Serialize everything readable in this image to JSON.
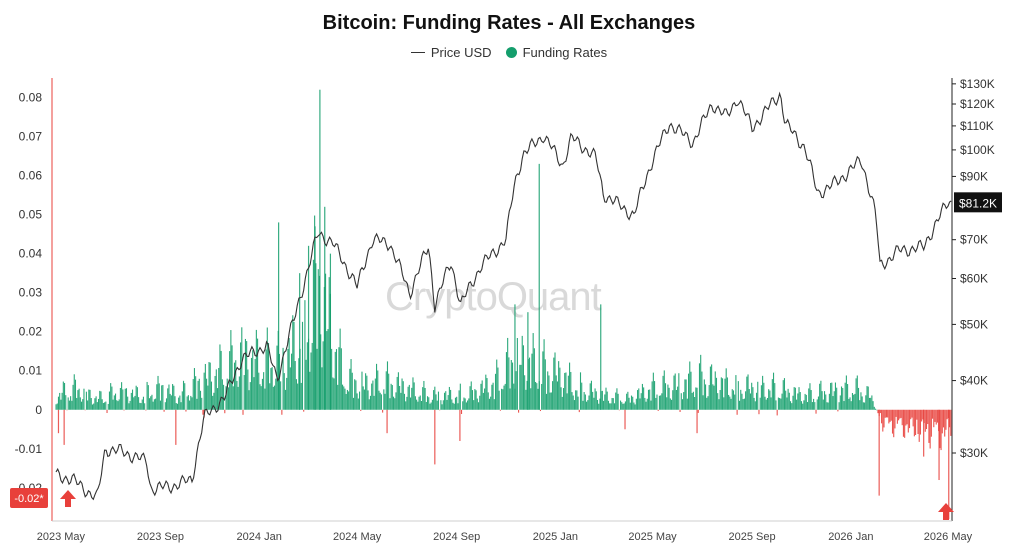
{
  "chart_data": {
    "type": "bar",
    "title": "Bitcoin: Funding Rates - All Exchanges",
    "watermark": "CryptoQuant",
    "legend": [
      {
        "name": "Price USD",
        "marker": "line",
        "color": "#333333"
      },
      {
        "name": "Funding Rates",
        "marker": "dot",
        "color": "#149e6c"
      }
    ],
    "colors": {
      "positive": "#149e6c",
      "negative": "#e8403b",
      "price": "#333333",
      "badge": "#111111",
      "axis_flag": "#e8403b"
    },
    "x_ticks": [
      "2023 May",
      "2023 Sep",
      "2024 Jan",
      "2024 May",
      "2024 Sep",
      "2025 Jan",
      "2025 May",
      "2025 Sep",
      "2026 Jan",
      "2026 May"
    ],
    "left_axis": {
      "ticks": [
        0.08,
        0.07,
        0.06,
        0.05,
        0.04,
        0.03,
        0.02,
        0.01,
        0,
        -0.01,
        -0.02
      ],
      "tick_labels": [
        "0.08",
        "0.07",
        "0.06",
        "0.05",
        "0.04",
        "0.03",
        "0.02",
        "0.01",
        "0",
        "-0.01",
        "-0.02"
      ],
      "ylim": [
        -0.0285,
        0.085
      ],
      "min_badge": "-0.02*"
    },
    "right_axis": {
      "scale": "log",
      "ticks": [
        130000,
        120000,
        110000,
        100000,
        90000,
        70000,
        60000,
        50000,
        40000,
        30000
      ],
      "tick_labels": [
        "$130K",
        "$120K",
        "$110K",
        "$100K",
        "$90K",
        "$70K",
        "$60K",
        "$50K",
        "$40K",
        "$30K"
      ],
      "current_badge": "$81.2K"
    },
    "series": [
      {
        "name": "Funding Rates",
        "kind": "bar",
        "anchors": [
          [
            "2023-04-25",
            0.004
          ],
          [
            "2023-05-20",
            0.006
          ],
          [
            "2023-06-15",
            0.003
          ],
          [
            "2023-07-10",
            0.005
          ],
          [
            "2023-08-10",
            0.004
          ],
          [
            "2023-09-01",
            0.006
          ],
          [
            "2023-09-25",
            0.004
          ],
          [
            "2023-10-20",
            0.008
          ],
          [
            "2023-11-15",
            0.011
          ],
          [
            "2023-12-10",
            0.015
          ],
          [
            "2024-01-05",
            0.013
          ],
          [
            "2024-02-01",
            0.014
          ],
          [
            "2024-02-25",
            0.02
          ],
          [
            "2024-03-12",
            0.035
          ],
          [
            "2024-03-28",
            0.024
          ],
          [
            "2024-04-15",
            0.009
          ],
          [
            "2024-05-10",
            0.007
          ],
          [
            "2024-06-05",
            0.008
          ],
          [
            "2024-07-01",
            0.006
          ],
          [
            "2024-08-01",
            0.004
          ],
          [
            "2024-09-01",
            0.004
          ],
          [
            "2024-09-25",
            0.005
          ],
          [
            "2024-10-20",
            0.008
          ],
          [
            "2024-11-15",
            0.015
          ],
          [
            "2024-12-10",
            0.012
          ],
          [
            "2025-01-05",
            0.01
          ],
          [
            "2025-02-01",
            0.006
          ],
          [
            "2025-03-01",
            0.004
          ],
          [
            "2025-04-01",
            0.003
          ],
          [
            "2025-05-01",
            0.006
          ],
          [
            "2025-06-01",
            0.007
          ],
          [
            "2025-07-01",
            0.009
          ],
          [
            "2025-08-01",
            0.007
          ],
          [
            "2025-09-01",
            0.006
          ],
          [
            "2025-10-01",
            0.006
          ],
          [
            "2025-11-01",
            0.004
          ],
          [
            "2025-12-01",
            0.005
          ],
          [
            "2026-01-05",
            0.006
          ],
          [
            "2026-01-25",
            0.004
          ],
          [
            "2026-02-10",
            -0.004
          ],
          [
            "2026-03-10",
            -0.005
          ],
          [
            "2026-04-01",
            -0.006
          ],
          [
            "2026-04-25",
            -0.007
          ],
          [
            "2026-05-05",
            -0.005
          ]
        ],
        "spikes": [
          [
            "2023-04-28",
            -0.006
          ],
          [
            "2023-05-05",
            -0.009
          ],
          [
            "2023-09-20",
            -0.009
          ],
          [
            "2023-10-25",
            -0.002
          ],
          [
            "2024-01-25",
            0.048
          ],
          [
            "2024-02-20",
            0.035
          ],
          [
            "2024-03-02",
            0.042
          ],
          [
            "2024-03-10",
            0.047
          ],
          [
            "2024-03-16",
            0.082
          ],
          [
            "2024-03-22",
            0.052
          ],
          [
            "2024-03-29",
            0.04
          ],
          [
            "2024-06-07",
            -0.006
          ],
          [
            "2024-08-05",
            -0.014
          ],
          [
            "2024-09-05",
            -0.008
          ],
          [
            "2024-11-12",
            0.027
          ],
          [
            "2024-11-28",
            0.025
          ],
          [
            "2024-12-12",
            0.063
          ],
          [
            "2025-02-26",
            0.027
          ],
          [
            "2025-03-28",
            -0.005
          ],
          [
            "2025-06-25",
            -0.006
          ],
          [
            "2026-02-05",
            -0.022
          ],
          [
            "2026-04-01",
            -0.012
          ],
          [
            "2026-04-20",
            -0.018
          ],
          [
            "2026-05-02",
            -0.028
          ]
        ]
      },
      {
        "name": "Price USD",
        "kind": "line",
        "anchors": [
          [
            "2023-04-25",
            27500
          ],
          [
            "2023-05-15",
            27000
          ],
          [
            "2023-06-15",
            25000
          ],
          [
            "2023-06-25",
            30500
          ],
          [
            "2023-07-15",
            30200
          ],
          [
            "2023-08-15",
            29000
          ],
          [
            "2023-08-20",
            26000
          ],
          [
            "2023-09-15",
            26300
          ],
          [
            "2023-10-10",
            27000
          ],
          [
            "2023-10-25",
            34500
          ],
          [
            "2023-11-20",
            37500
          ],
          [
            "2023-12-10",
            43500
          ],
          [
            "2024-01-10",
            46000
          ],
          [
            "2024-01-23",
            40000
          ],
          [
            "2024-02-15",
            52000
          ],
          [
            "2024-03-01",
            62000
          ],
          [
            "2024-03-14",
            72000
          ],
          [
            "2024-04-01",
            69000
          ],
          [
            "2024-05-01",
            58000
          ],
          [
            "2024-05-20",
            70000
          ],
          [
            "2024-06-10",
            69000
          ],
          [
            "2024-07-05",
            56500
          ],
          [
            "2024-07-28",
            68000
          ],
          [
            "2024-08-05",
            54000
          ],
          [
            "2024-08-25",
            64000
          ],
          [
            "2024-09-06",
            54000
          ],
          [
            "2024-10-01",
            63000
          ],
          [
            "2024-11-01",
            70000
          ],
          [
            "2024-11-12",
            88000
          ],
          [
            "2024-11-22",
            98000
          ],
          [
            "2024-12-17",
            106000
          ],
          [
            "2025-01-10",
            94000
          ],
          [
            "2025-01-21",
            105000
          ],
          [
            "2025-02-20",
            97000
          ],
          [
            "2025-03-01",
            84000
          ],
          [
            "2025-04-08",
            77000
          ],
          [
            "2025-05-01",
            96000
          ],
          [
            "2025-05-22",
            111000
          ],
          [
            "2025-06-20",
            103000
          ],
          [
            "2025-07-14",
            120000
          ],
          [
            "2025-08-01",
            114000
          ],
          [
            "2025-08-14",
            123000
          ],
          [
            "2025-09-01",
            109000
          ],
          [
            "2025-10-06",
            125000
          ],
          [
            "2025-10-12",
            111000
          ],
          [
            "2025-11-05",
            101000
          ],
          [
            "2025-11-21",
            84000
          ],
          [
            "2025-12-15",
            88000
          ],
          [
            "2026-01-14",
            96000
          ],
          [
            "2026-02-01",
            77000
          ],
          [
            "2026-02-06",
            63000
          ],
          [
            "2026-03-01",
            67000
          ],
          [
            "2026-04-01",
            68000
          ],
          [
            "2026-05-01",
            81200
          ]
        ]
      }
    ]
  }
}
